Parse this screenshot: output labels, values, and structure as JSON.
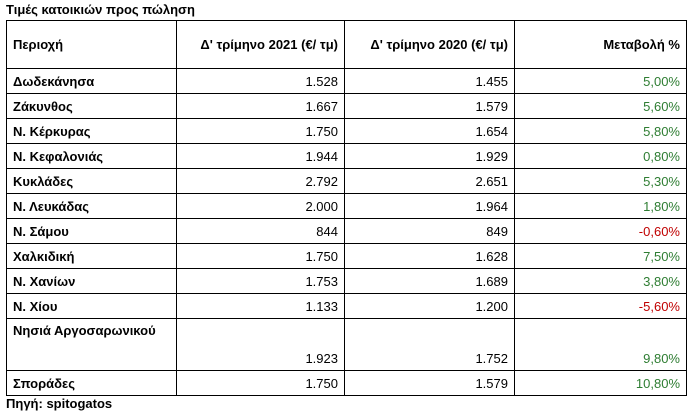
{
  "title": "Τιμές κατοικιών προς πώληση",
  "source": "Πηγή: spitogatos",
  "colors": {
    "positive": "#2e7d32",
    "negative": "#c00000"
  },
  "headers": [
    "Περιοχή",
    "Δ' τρίμηνο 2021 (€/ τμ)",
    "Δ' τρίμηνο 2020 (€/ τμ)",
    "Μεταβολή %"
  ],
  "rows": [
    {
      "region": "Δωδεκάνησα",
      "q4_2021": "1.528",
      "q4_2020": "1.455",
      "change": "5,00%"
    },
    {
      "region": "Ζάκυνθος",
      "q4_2021": "1.667",
      "q4_2020": "1.579",
      "change": "5,60%"
    },
    {
      "region": "Ν. Κέρκυρας",
      "q4_2021": "1.750",
      "q4_2020": "1.654",
      "change": "5,80%"
    },
    {
      "region": "Ν. Κεφαλονιάς",
      "q4_2021": "1.944",
      "q4_2020": "1.929",
      "change": "0,80%"
    },
    {
      "region": "Κυκλάδες",
      "q4_2021": "2.792",
      "q4_2020": "2.651",
      "change": "5,30%"
    },
    {
      "region": "Ν. Λευκάδας",
      "q4_2021": "2.000",
      "q4_2020": "1.964",
      "change": "1,80%"
    },
    {
      "region": "Ν. Σάμου",
      "q4_2021": "844",
      "q4_2020": "849",
      "change": "-0,60%"
    },
    {
      "region": "Χαλκιδική",
      "q4_2021": "1.750",
      "q4_2020": "1.628",
      "change": "7,50%"
    },
    {
      "region": "Ν. Χανίων",
      "q4_2021": "1.753",
      "q4_2020": "1.689",
      "change": "3,80%"
    },
    {
      "region": "Ν. Χίου",
      "q4_2021": "1.133",
      "q4_2020": "1.200",
      "change": "-5,60%"
    },
    {
      "region": "Νησιά Αργοσαρωνικού",
      "q4_2021": "1.923",
      "q4_2020": "1.752",
      "change": "9,80%"
    },
    {
      "region": "Σποράδες",
      "q4_2021": "1.750",
      "q4_2020": "1.579",
      "change": "10,80%"
    }
  ]
}
